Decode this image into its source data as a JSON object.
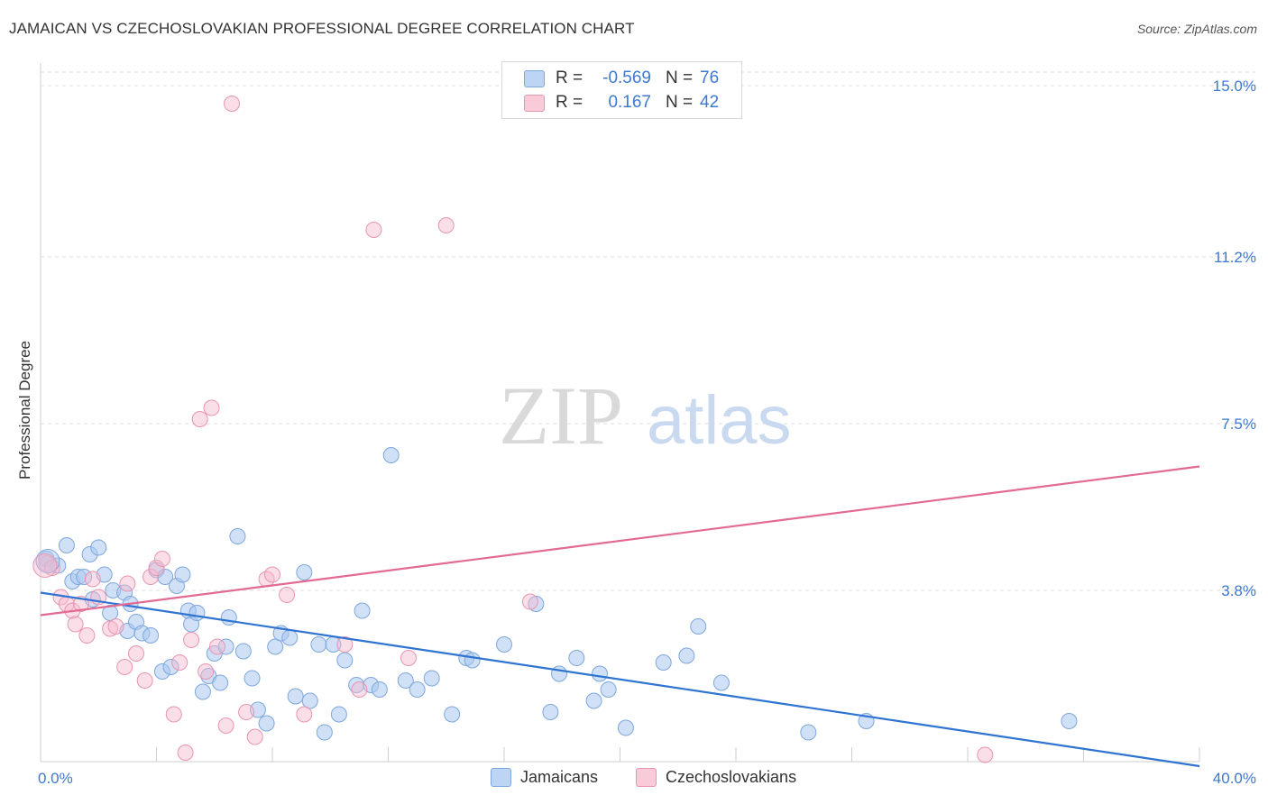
{
  "title": "JAMAICAN VS CZECHOSLOVAKIAN PROFESSIONAL DEGREE CORRELATION CHART",
  "source": "Source: ZipAtlas.com",
  "watermark": {
    "zip": "ZIP",
    "atlas": "atlas"
  },
  "legend_stats": [
    {
      "r_label": "R =",
      "r_value": "-0.569",
      "n_label": "N =",
      "n_value": "76",
      "color": "#a9c8f0"
    },
    {
      "r_label": "R =",
      "r_value": "0.167",
      "n_label": "N =",
      "n_value": "42",
      "color": "#f6b8cc"
    }
  ],
  "chart_data": {
    "type": "scatter",
    "title": "JAMAICAN VS CZECHOSLOVAKIAN PROFESSIONAL DEGREE CORRELATION CHART",
    "xlabel": "",
    "ylabel": "Professional Degree",
    "xlim": [
      0,
      40
    ],
    "ylim": [
      0,
      15.5
    ],
    "x_tick_labels": [
      "0.0%",
      "40.0%"
    ],
    "y_ticks": [
      3.8,
      7.5,
      11.2,
      15.0
    ],
    "y_tick_labels": [
      "3.8%",
      "7.5%",
      "11.2%",
      "15.0%"
    ],
    "grid": true,
    "series": [
      {
        "name": "Jamaicans",
        "color": "#a9c8f0",
        "line_color": "#2f74d0",
        "trend": {
          "x": [
            0,
            40
          ],
          "y": [
            3.75,
            -0.1
          ]
        },
        "x": [
          0.2,
          0.6,
          0.9,
          1.1,
          1.3,
          1.5,
          1.7,
          1.8,
          2.0,
          2.2,
          2.4,
          2.5,
          2.9,
          3.0,
          3.1,
          3.3,
          3.5,
          3.8,
          4.0,
          4.2,
          4.3,
          4.5,
          4.7,
          4.9,
          5.1,
          5.2,
          5.4,
          5.6,
          5.8,
          6.0,
          6.2,
          6.4,
          6.5,
          6.8,
          7.0,
          7.3,
          7.5,
          7.8,
          8.1,
          8.3,
          8.6,
          8.8,
          9.1,
          9.3,
          9.6,
          9.8,
          10.1,
          10.3,
          10.5,
          10.9,
          11.1,
          11.4,
          11.7,
          12.1,
          12.6,
          13.0,
          13.5,
          14.2,
          14.7,
          14.9,
          16.0,
          17.1,
          17.6,
          17.9,
          18.5,
          19.1,
          19.3,
          19.6,
          20.2,
          21.5,
          22.3,
          22.7,
          23.5,
          26.5,
          28.5,
          35.5
        ],
        "y": [
          4.5,
          4.35,
          4.8,
          4.0,
          4.1,
          4.1,
          4.6,
          3.6,
          4.75,
          4.15,
          3.3,
          3.8,
          3.75,
          2.9,
          3.5,
          3.1,
          2.85,
          2.8,
          4.25,
          2.0,
          4.1,
          2.1,
          3.9,
          4.15,
          3.35,
          3.05,
          3.3,
          1.55,
          1.9,
          2.4,
          1.75,
          2.55,
          3.2,
          5.0,
          2.45,
          1.85,
          1.15,
          0.85,
          2.55,
          2.85,
          2.75,
          1.45,
          4.2,
          1.35,
          2.6,
          0.65,
          2.6,
          1.05,
          2.25,
          1.7,
          3.35,
          1.7,
          1.6,
          6.8,
          1.8,
          1.6,
          1.85,
          1.05,
          2.3,
          2.25,
          2.6,
          3.5,
          1.1,
          1.95,
          2.3,
          1.35,
          1.95,
          1.6,
          0.75,
          2.2,
          2.35,
          3.0,
          1.75,
          0.65,
          0.9,
          0.9
        ]
      },
      {
        "name": "Czechoslovakians",
        "color": "#f6b8cc",
        "line_color": "#e26a93",
        "trend": {
          "x": [
            0,
            40
          ],
          "y": [
            3.25,
            6.55
          ]
        },
        "x": [
          0.2,
          0.4,
          0.7,
          0.9,
          1.1,
          1.2,
          1.4,
          1.6,
          1.8,
          2.0,
          2.4,
          2.6,
          2.9,
          3.0,
          3.3,
          3.6,
          3.8,
          4.0,
          4.2,
          4.6,
          4.8,
          5.0,
          5.2,
          5.5,
          5.7,
          5.9,
          6.1,
          6.4,
          6.6,
          7.1,
          7.4,
          7.8,
          8.0,
          8.5,
          9.1,
          10.5,
          11.0,
          11.5,
          12.7,
          14.0,
          16.9,
          32.6
        ],
        "y": [
          4.4,
          4.3,
          3.65,
          3.5,
          3.35,
          3.05,
          3.5,
          2.8,
          4.05,
          3.65,
          2.95,
          3.0,
          2.1,
          3.95,
          2.4,
          1.8,
          4.1,
          4.3,
          4.5,
          1.05,
          2.2,
          0.2,
          2.7,
          7.6,
          2.0,
          7.85,
          2.55,
          0.8,
          14.6,
          1.1,
          0.55,
          4.05,
          4.15,
          3.7,
          1.05,
          2.6,
          1.6,
          11.8,
          2.3,
          11.9,
          3.55,
          0.15
        ]
      }
    ]
  }
}
